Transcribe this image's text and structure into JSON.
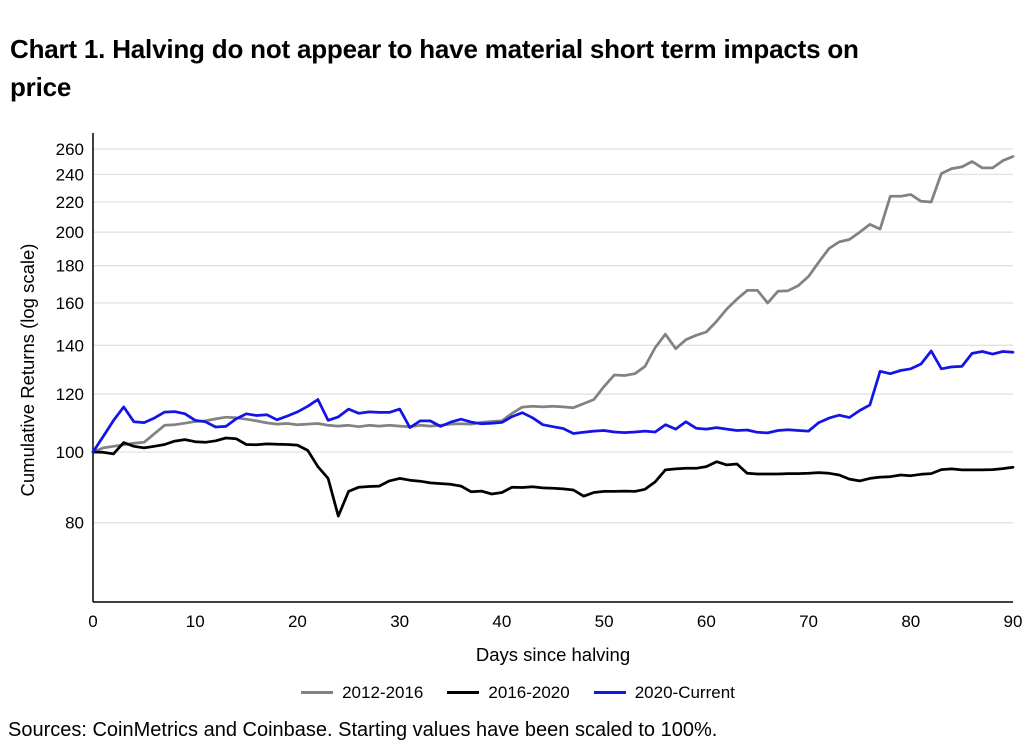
{
  "title_lines": [
    "Chart 1. Halving do not appear to have material short term impacts on",
    "price"
  ],
  "source_note": "Sources: CoinMetrics and Coinbase. Starting values have been scaled to 100%.",
  "colors": {
    "background": "#ffffff",
    "axis": "#000000",
    "gridline": "#e2e2e2",
    "text": "#000000",
    "series_gray": "#828282",
    "series_black": "#000000",
    "series_blue": "#1414e6"
  },
  "chart_data": {
    "type": "line",
    "title": "Chart 1. Halving do not appear to have material short term impacts on price",
    "xlabel": "Days since halving",
    "ylabel": "Cumulative Returns (log scale)",
    "y_scale": "log",
    "grid": "horizontal",
    "legend_position": "bottom",
    "x_range": [
      0,
      90
    ],
    "x_step": 1,
    "x_ticks": [
      0,
      10,
      20,
      30,
      40,
      50,
      60,
      70,
      80,
      90
    ],
    "y_ticks": [
      80,
      100,
      120,
      140,
      160,
      180,
      200,
      220,
      240,
      260
    ],
    "series": [
      {
        "name": "2012-2016",
        "color": "#828282",
        "values": [
          100,
          101.3,
          101.8,
          102.3,
          102.8,
          103.1,
          105.9,
          108.8,
          109,
          109.5,
          110.1,
          110.3,
          111,
          111.6,
          111.4,
          110.9,
          110.3,
          109.6,
          109.2,
          109.4,
          109,
          109.2,
          109.4,
          108.8,
          108.5,
          108.8,
          108.3,
          108.8,
          108.5,
          108.8,
          108.5,
          108.3,
          108.8,
          108.5,
          108.8,
          109.2,
          109.3,
          109.2,
          109.8,
          110.1,
          110.3,
          113,
          115.2,
          115.5,
          115.3,
          115.5,
          115.3,
          115,
          116.5,
          118,
          123,
          127.5,
          127.3,
          128,
          131,
          139,
          145,
          138.5,
          142.5,
          144.5,
          146,
          151,
          157,
          162,
          166.5,
          166.5,
          160,
          166,
          166.3,
          169,
          174,
          182,
          190,
          194,
          195.5,
          200,
          205,
          202,
          224,
          224,
          225.3,
          220.5,
          220,
          240.7,
          244.5,
          245.8,
          250,
          245,
          245,
          250.6,
          254
        ]
      },
      {
        "name": "2016-2020",
        "color": "#000000",
        "values": [
          100,
          99.9,
          99.4,
          103,
          101.8,
          101.3,
          101.8,
          102.4,
          103.5,
          104,
          103.3,
          103.1,
          103.6,
          104.5,
          104.3,
          102.4,
          102.3,
          102.6,
          102.5,
          102.4,
          102.2,
          100.5,
          95.5,
          92,
          81.7,
          88.3,
          89.5,
          89.7,
          89.8,
          91.3,
          92,
          91.5,
          91.2,
          90.7,
          90.5,
          90.3,
          89.8,
          88.2,
          88.4,
          87.6,
          88,
          89.5,
          89.4,
          89.6,
          89.3,
          89.2,
          89,
          88.7,
          87,
          88,
          88.3,
          88.3,
          88.4,
          88.3,
          88.9,
          91,
          94.5,
          94.8,
          95,
          95,
          95.5,
          97,
          96,
          96.3,
          93.5,
          93.3,
          93.3,
          93.3,
          93.4,
          93.4,
          93.5,
          93.7,
          93.5,
          93,
          91.8,
          91.3,
          92,
          92.4,
          92.5,
          93,
          92.8,
          93.2,
          93.4,
          94.6,
          94.8,
          94.5,
          94.5,
          94.5,
          94.6,
          94.9,
          95.3
        ]
      },
      {
        "name": "2020-Current",
        "color": "#1414e6",
        "values": [
          100,
          105,
          110.4,
          115.3,
          110,
          109.7,
          111.3,
          113.4,
          113.6,
          112.8,
          110.5,
          110,
          108.2,
          108.4,
          111,
          112.8,
          112.2,
          112.5,
          110.7,
          112,
          113.5,
          115.5,
          118,
          110.5,
          111.7,
          114.5,
          113,
          113.5,
          113.3,
          113.3,
          114.5,
          108,
          110.3,
          110.3,
          108.4,
          109.9,
          110.9,
          109.9,
          109.3,
          109.5,
          109.8,
          111.8,
          113.2,
          111.4,
          109,
          108.3,
          107.7,
          106,
          106.4,
          106.8,
          107,
          106.5,
          106.3,
          106.5,
          106.8,
          106.5,
          109,
          107.5,
          110,
          107.8,
          107.5,
          108,
          107.5,
          107,
          107.2,
          106.4,
          106.2,
          107,
          107.3,
          107,
          106.8,
          109.7,
          111.3,
          112.3,
          111.5,
          114,
          116,
          129,
          128,
          129.3,
          130,
          132,
          137.5,
          130,
          130.8,
          131,
          136.5,
          137.3,
          136.2,
          137.3,
          137
        ]
      }
    ]
  }
}
